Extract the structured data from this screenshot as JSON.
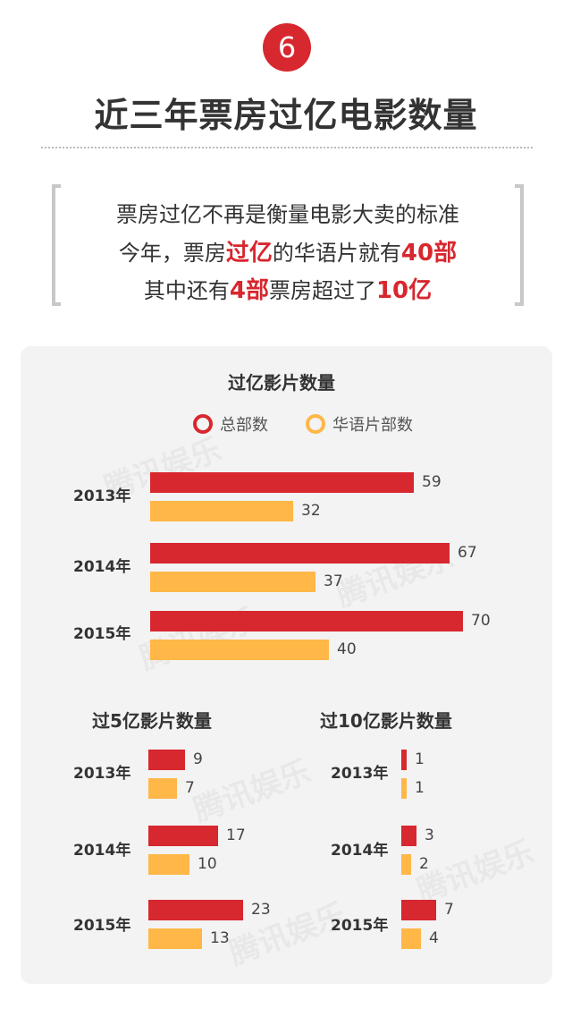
{
  "header": {
    "step_number": "6",
    "title": "近三年票房过亿电影数量"
  },
  "intro": {
    "line1": "票房过亿不再是衡量电影大卖的标准",
    "line2_a": "今年，票房",
    "line2_hl1": "过亿",
    "line2_b": "的华语片就有",
    "line2_hl2": "40部",
    "line3_a": "其中还有",
    "line3_hl1": "4部",
    "line3_b": "票房超过了",
    "line3_hl2": "10亿"
  },
  "colors": {
    "total": "#d7272f",
    "chinese": "#ffb748",
    "badge": "#d7272f",
    "panel_bg": "#f3f3f3"
  },
  "legend": {
    "total": "总部数",
    "chinese": "华语片部数"
  },
  "watermark_text": "腾讯娱乐",
  "chart_data": [
    {
      "type": "bar",
      "orientation": "horizontal",
      "title": "过亿影片数量",
      "categories": [
        "2013年",
        "2014年",
        "2015年"
      ],
      "series": [
        {
          "name": "总部数",
          "values": [
            59,
            67,
            70
          ]
        },
        {
          "name": "华语片部数",
          "values": [
            32,
            37,
            40
          ]
        }
      ]
    },
    {
      "type": "bar",
      "orientation": "horizontal",
      "title": "过5亿影片数量",
      "categories": [
        "2013年",
        "2014年",
        "2015年"
      ],
      "series": [
        {
          "name": "总部数",
          "values": [
            9,
            17,
            23
          ]
        },
        {
          "name": "华语片部数",
          "values": [
            7,
            10,
            13
          ]
        }
      ]
    },
    {
      "type": "bar",
      "orientation": "horizontal",
      "title": "过10亿影片数量",
      "categories": [
        "2013年",
        "2014年",
        "2015年"
      ],
      "series": [
        {
          "name": "总部数",
          "values": [
            1,
            3,
            7
          ]
        },
        {
          "name": "华语片部数",
          "values": [
            1,
            2,
            4
          ]
        }
      ]
    }
  ]
}
